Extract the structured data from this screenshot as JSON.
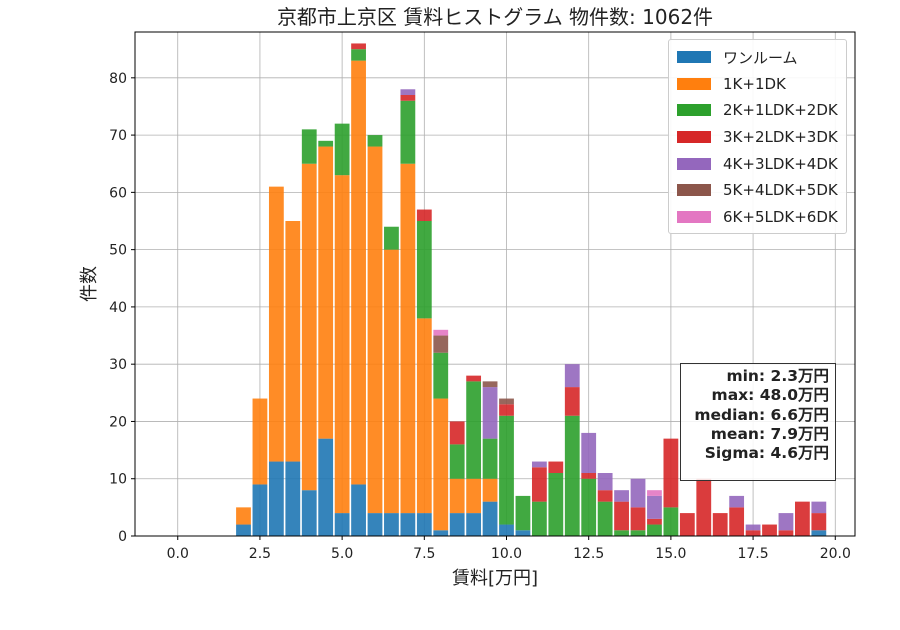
{
  "chart_data": {
    "type": "bar",
    "stacked": true,
    "title": "京都市上京区 賃料ヒストグラム  物件数: 1062件",
    "xlabel": "賃料[万円]",
    "ylabel": "件数",
    "xlim": [
      -1.3,
      20.6
    ],
    "ylim": [
      0,
      88
    ],
    "x_ticks": [
      "0.0",
      "2.5",
      "5.0",
      "7.5",
      "10.0",
      "12.5",
      "15.0",
      "17.5",
      "20.0"
    ],
    "y_ticks": [
      "0",
      "10",
      "20",
      "30",
      "40",
      "50",
      "60",
      "70",
      "80"
    ],
    "grid": true,
    "legend_position": "top-right",
    "bin_width": 0.5,
    "x": [
      2.0,
      2.5,
      3.0,
      3.5,
      4.0,
      4.5,
      5.0,
      5.5,
      6.0,
      6.5,
      7.0,
      7.5,
      8.0,
      8.5,
      9.0,
      9.5,
      10.0,
      10.5,
      11.0,
      11.5,
      12.0,
      12.5,
      13.0,
      13.5,
      14.0,
      14.5,
      15.0,
      15.5,
      16.0,
      16.5,
      17.0,
      17.5,
      18.0,
      18.5,
      19.0,
      19.5
    ],
    "series": [
      {
        "name": "ワンルーム",
        "color": "#1f77b4",
        "values": [
          2,
          9,
          13,
          13,
          8,
          17,
          4,
          9,
          4,
          4,
          4,
          4,
          1,
          4,
          4,
          6,
          2,
          1,
          0,
          0,
          0,
          0,
          0,
          0,
          0,
          0,
          0,
          0,
          0,
          0,
          0,
          0,
          0,
          0,
          0,
          1
        ]
      },
      {
        "name": "1K+1DK",
        "color": "#ff7f0e",
        "values": [
          3,
          15,
          48,
          42,
          57,
          51,
          59,
          74,
          64,
          46,
          61,
          34,
          23,
          6,
          6,
          4,
          0,
          0,
          0,
          0,
          0,
          0,
          0,
          0,
          0,
          0,
          0,
          0,
          0,
          0,
          0,
          0,
          0,
          0,
          0,
          0
        ]
      },
      {
        "name": "2K+1LDK+2DK",
        "color": "#2ca02c",
        "values": [
          0,
          0,
          0,
          0,
          6,
          1,
          9,
          2,
          2,
          4,
          11,
          17,
          8,
          6,
          17,
          7,
          19,
          6,
          6,
          11,
          21,
          10,
          6,
          1,
          1,
          2,
          5,
          0,
          0,
          0,
          0,
          0,
          0,
          0,
          0,
          0
        ]
      },
      {
        "name": "3K+2LDK+3DK",
        "color": "#d62728",
        "values": [
          0,
          0,
          0,
          0,
          0,
          0,
          0,
          1,
          0,
          0,
          1,
          2,
          0,
          4,
          1,
          0,
          2,
          0,
          6,
          2,
          5,
          1,
          2,
          5,
          4,
          1,
          12,
          4,
          10,
          4,
          5,
          1,
          2,
          1,
          6,
          3
        ]
      },
      {
        "name": "4K+3LDK+4DK",
        "color": "#9467bd",
        "values": [
          0,
          0,
          0,
          0,
          0,
          0,
          0,
          0,
          0,
          0,
          1,
          0,
          0,
          0,
          0,
          9,
          0,
          0,
          1,
          0,
          4,
          7,
          3,
          2,
          5,
          4,
          0,
          0,
          0,
          0,
          2,
          1,
          0,
          3,
          0,
          2
        ]
      },
      {
        "name": "5K+4LDK+5DK",
        "color": "#8c564b",
        "values": [
          0,
          0,
          0,
          0,
          0,
          0,
          0,
          0,
          0,
          0,
          0,
          0,
          3,
          0,
          0,
          1,
          1,
          0,
          0,
          0,
          0,
          0,
          0,
          0,
          0,
          0,
          0,
          0,
          0,
          0,
          0,
          0,
          0,
          0,
          0,
          0
        ]
      },
      {
        "name": "6K+5LDK+6DK",
        "color": "#e377c2",
        "values": [
          0,
          0,
          0,
          0,
          0,
          0,
          0,
          0,
          0,
          0,
          0,
          0,
          1,
          0,
          0,
          0,
          0,
          0,
          0,
          0,
          0,
          0,
          0,
          0,
          0,
          1,
          0,
          0,
          0,
          0,
          0,
          0,
          0,
          0,
          0,
          0
        ]
      }
    ],
    "stats": {
      "min": "min: 2.3万円",
      "max": "max: 48.0万円",
      "median": "median: 6.6万円",
      "mean": "mean: 7.9万円",
      "sigma": "Sigma: 4.6万円"
    }
  }
}
